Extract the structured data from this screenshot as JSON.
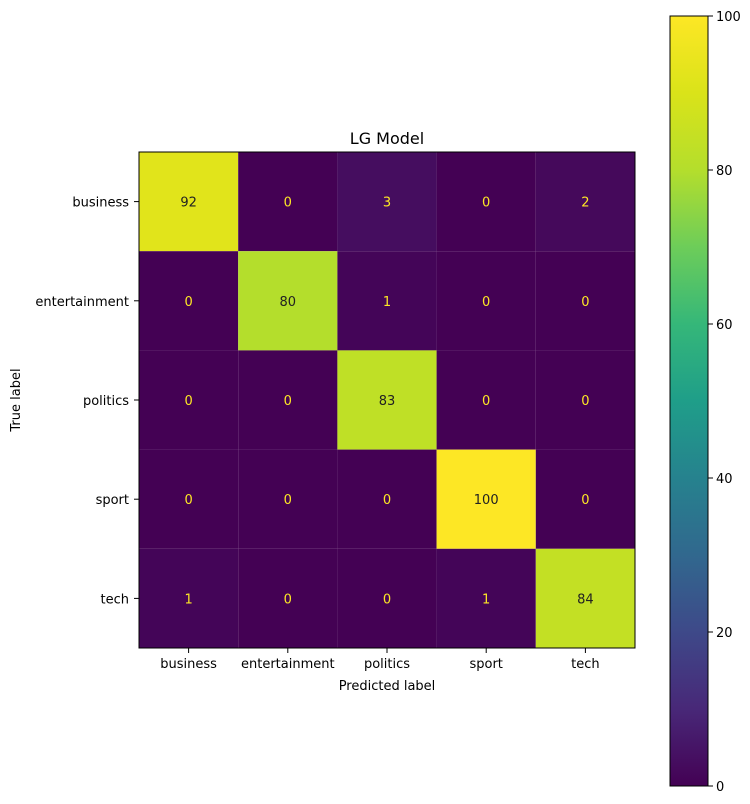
{
  "chart_data": {
    "type": "heatmap",
    "title": "LG Model",
    "xlabel": "Predicted label",
    "ylabel": "True label",
    "x_categories": [
      "business",
      "entertainment",
      "politics",
      "sport",
      "tech"
    ],
    "y_categories": [
      "business",
      "entertainment",
      "politics",
      "sport",
      "tech"
    ],
    "values": [
      [
        92,
        0,
        3,
        0,
        2
      ],
      [
        0,
        80,
        1,
        0,
        0
      ],
      [
        0,
        0,
        83,
        0,
        0
      ],
      [
        0,
        0,
        0,
        100,
        0
      ],
      [
        1,
        0,
        0,
        1,
        84
      ]
    ],
    "colormap": "viridis",
    "colorbar": {
      "range": [
        0,
        100
      ],
      "ticks": [
        0,
        20,
        40,
        60,
        80,
        100
      ],
      "tick_labels": [
        "0",
        "20",
        "40",
        "60",
        "80",
        "100"
      ]
    },
    "text_colors": {
      "dark_cell": "#fde725",
      "light_cell": "#222222"
    },
    "grid": false,
    "legend": "colorbar-right"
  }
}
